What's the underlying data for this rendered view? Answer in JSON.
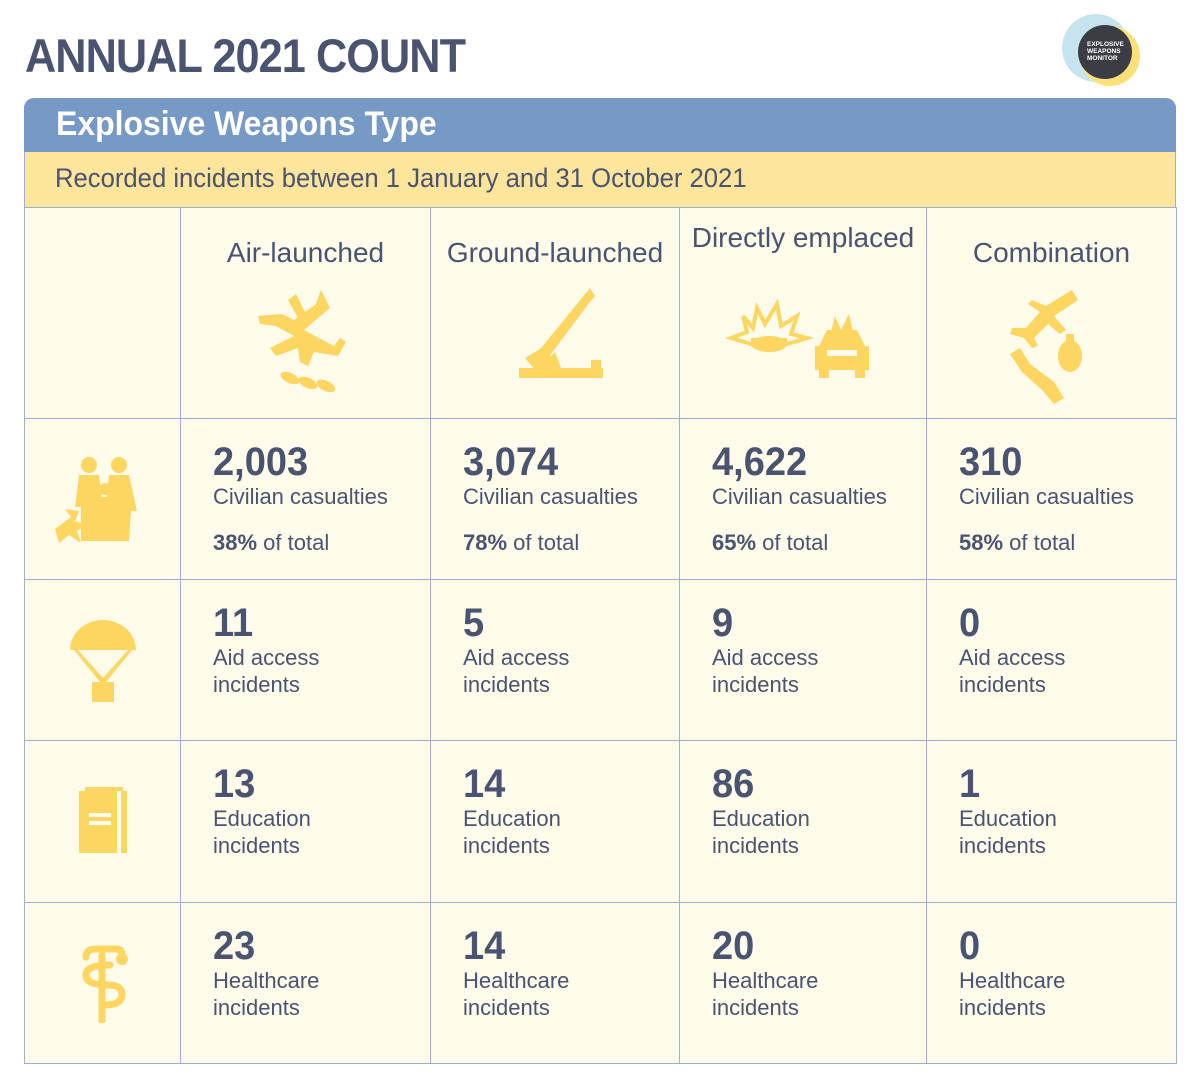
{
  "page": {
    "title": "ANNUAL 2021 COUNT",
    "logo_lines": [
      "EXPLOSIVE",
      "WEAPONS",
      "MONITOR"
    ]
  },
  "header": {
    "title": "Explosive Weapons Type",
    "subtitle": "Recorded incidents between 1 January and 31 October 2021"
  },
  "columns": [
    {
      "label": "Air-launched",
      "icon": "aircraft-bombs-icon"
    },
    {
      "label": "Ground-launched",
      "icon": "rocket-launcher-icon"
    },
    {
      "label": "Directly emplaced",
      "icon": "landmine-car-bomb-icon"
    },
    {
      "label": "Combination",
      "icon": "jet-grenade-bomb-icon"
    }
  ],
  "rows": [
    {
      "icon": "family-explosion-icon",
      "cells": [
        {
          "value": "2,003",
          "label": "Civilian casualties",
          "pct": "38%",
          "pct_suffix": " of total"
        },
        {
          "value": "3,074",
          "label": "Civilian casualties",
          "pct": "78%",
          "pct_suffix": " of total"
        },
        {
          "value": "4,622",
          "label": "Civilian casualties",
          "pct": "65%",
          "pct_suffix": " of total"
        },
        {
          "value": "310",
          "label": "Civilian casualties",
          "pct": "58%",
          "pct_suffix": " of total"
        }
      ]
    },
    {
      "icon": "parachute-aid-icon",
      "cells": [
        {
          "value": "11",
          "label": "Aid access incidents"
        },
        {
          "value": "5",
          "label": "Aid access incidents"
        },
        {
          "value": "9",
          "label": "Aid access incidents"
        },
        {
          "value": "0",
          "label": "Aid access incidents"
        }
      ]
    },
    {
      "icon": "book-icon",
      "cells": [
        {
          "value": "13",
          "label": "Education incidents"
        },
        {
          "value": "14",
          "label": "Education incidents"
        },
        {
          "value": "86",
          "label": "Education incidents"
        },
        {
          "value": "1",
          "label": "Education incidents"
        }
      ]
    },
    {
      "icon": "caduceus-icon",
      "cells": [
        {
          "value": "23",
          "label": "Healthcare incidents"
        },
        {
          "value": "14",
          "label": "Healthcare incidents"
        },
        {
          "value": "20",
          "label": "Healthcare incidents"
        },
        {
          "value": "0",
          "label": "Healthcare incidents"
        }
      ]
    }
  ],
  "colors": {
    "text": "#4a5370",
    "header_blue": "#7699c5",
    "subheader_yellow": "#fde59b",
    "cell_bg": "#fefbeb",
    "icon_yellow": "#fdd561",
    "border": "#9db1cf"
  }
}
